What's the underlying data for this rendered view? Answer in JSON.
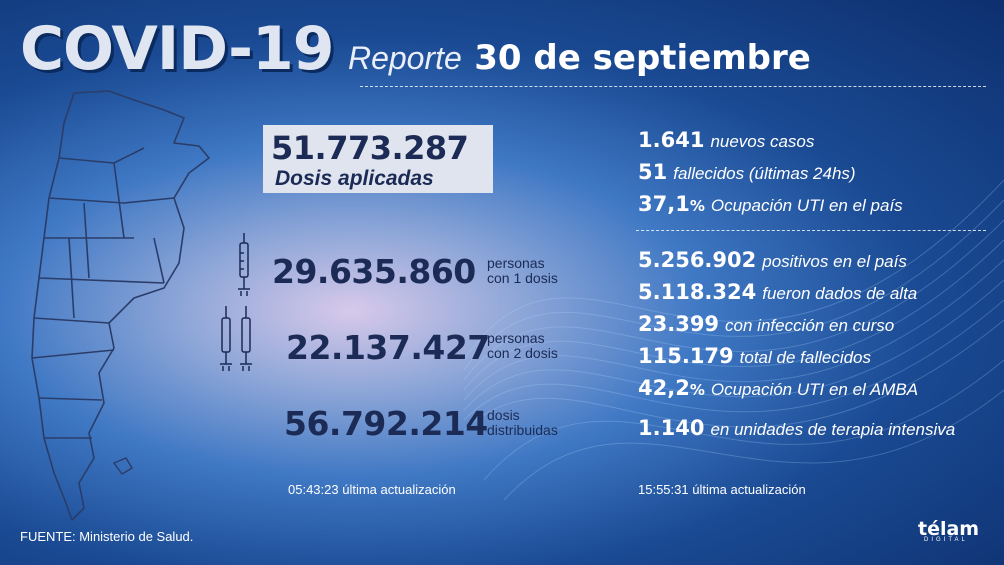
{
  "header": {
    "title_main": "COVID-19",
    "title_report": "Reporte",
    "title_date": "30 de septiembre"
  },
  "vaccination": {
    "applied_value": "51.773.287",
    "applied_label": "Dosis aplicadas",
    "one_dose_value": "29.635.860",
    "one_dose_label": "personas\ncon 1 dosis",
    "two_dose_value": "22.137.427",
    "two_dose_label": "personas\ncon 2 dosis",
    "distributed_value": "56.792.214",
    "distributed_label": "dosis\ndistribuidas",
    "updated_time": "05:43:23",
    "updated_label": "última actualización"
  },
  "daily": [
    {
      "value": "1.641",
      "label": "nuevos casos"
    },
    {
      "value": "51",
      "label": "fallecidos (últimas 24hs)"
    },
    {
      "value": "37,1",
      "unit": "%",
      "label": "Ocupación UTI en el país"
    }
  ],
  "totals": [
    {
      "value": "5.256.902",
      "label": "positivos en el país"
    },
    {
      "value": "5.118.324",
      "label": "fueron dados de alta"
    },
    {
      "value": "23.399",
      "label": "con infección en curso"
    },
    {
      "value": "115.179",
      "label": "total de fallecidos"
    },
    {
      "value": "42,2",
      "unit": "%",
      "label": "Ocupación UTI en el AMBA"
    },
    {
      "value": "1.140",
      "label": "en unidades de terapia intensiva"
    }
  ],
  "cases_update": {
    "time": "15:55:31",
    "label": "última actualización"
  },
  "footer": {
    "source": "FUENTE: Ministerio de Salud.",
    "logo_word": "télam",
    "logo_sub": "DIGITAL"
  },
  "colors": {
    "background": "#1a4a93",
    "navy_text": "#1b2b55",
    "box": "#dfe4ef"
  }
}
